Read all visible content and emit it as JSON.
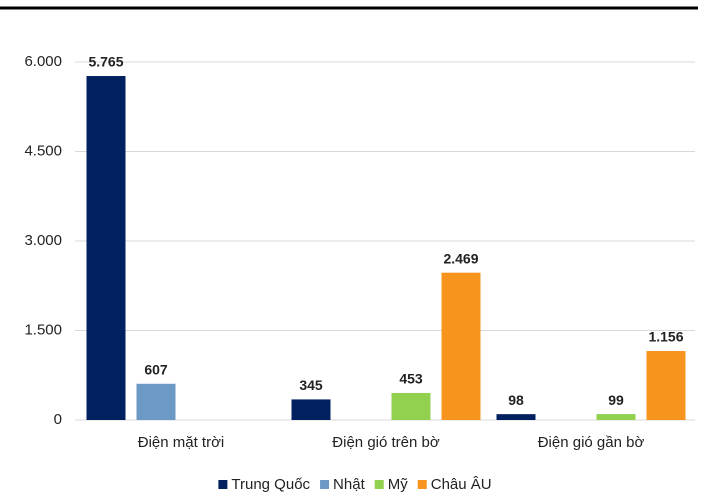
{
  "chart_data": {
    "type": "bar",
    "categories": [
      "Điện mặt trời",
      "Điện gió trên bờ",
      "Điện gió gần bờ"
    ],
    "series": [
      {
        "name": "Trung Quốc",
        "color": "#002060",
        "values": [
          5765,
          345,
          98
        ],
        "value_labels": [
          "5.765",
          "345",
          "98"
        ]
      },
      {
        "name": "Nhật",
        "color": "#6d99c6",
        "values": [
          607,
          null,
          null
        ],
        "value_labels": [
          "607",
          null,
          null
        ]
      },
      {
        "name": "Mỹ",
        "color": "#92d050",
        "values": [
          null,
          453,
          99
        ],
        "value_labels": [
          null,
          "453",
          "99"
        ]
      },
      {
        "name": "Châu ÂU",
        "color": "#f7941d",
        "values": [
          null,
          2469,
          1156
        ],
        "value_labels": [
          null,
          "2.469",
          "1.156"
        ]
      }
    ],
    "ylim": [
      0,
      6000
    ],
    "yticks": [
      0,
      {
        "value": 1500,
        "label": "1.500"
      },
      {
        "value": 3000,
        "label": "3.000"
      },
      {
        "value": 4500,
        "label": "4.500"
      },
      {
        "value": 6000,
        "label": "6.000"
      }
    ],
    "grid": true,
    "legend": "bottom"
  }
}
